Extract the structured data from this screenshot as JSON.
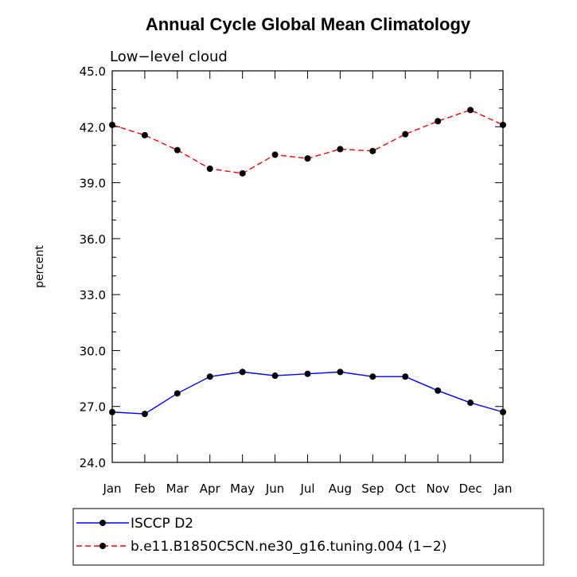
{
  "chart_data": {
    "type": "line",
    "title": "Annual Cycle Global Mean Climatology",
    "subtitle": "Low−level cloud",
    "ylabel": "percent",
    "xlabel": "",
    "categories": [
      "Jan",
      "Feb",
      "Mar",
      "Apr",
      "May",
      "Jun",
      "Jul",
      "Aug",
      "Sep",
      "Oct",
      "Nov",
      "Dec",
      "Jan"
    ],
    "ylim": [
      24.0,
      45.0
    ],
    "yticks": [
      "24.0",
      "27.0",
      "30.0",
      "33.0",
      "36.0",
      "39.0",
      "42.0",
      "45.0"
    ],
    "grid": false,
    "legend_position": "bottom",
    "series": [
      {
        "name": "ISCCP D2",
        "color": "#0000ff",
        "line_style": "solid",
        "marker": "filled-circle",
        "values": [
          26.7,
          26.6,
          27.7,
          28.6,
          28.85,
          28.65,
          28.75,
          28.85,
          28.6,
          28.6,
          27.85,
          27.2,
          26.7
        ]
      },
      {
        "name": "b.e11.B1850C5CN.ne30_g16.tuning.004 (1−2)",
        "color": "#ff0000",
        "line_style": "dashed",
        "marker": "filled-circle",
        "values": [
          42.1,
          41.55,
          40.75,
          39.75,
          39.5,
          40.5,
          40.3,
          40.8,
          40.7,
          41.6,
          42.3,
          42.9,
          42.1
        ]
      }
    ]
  }
}
